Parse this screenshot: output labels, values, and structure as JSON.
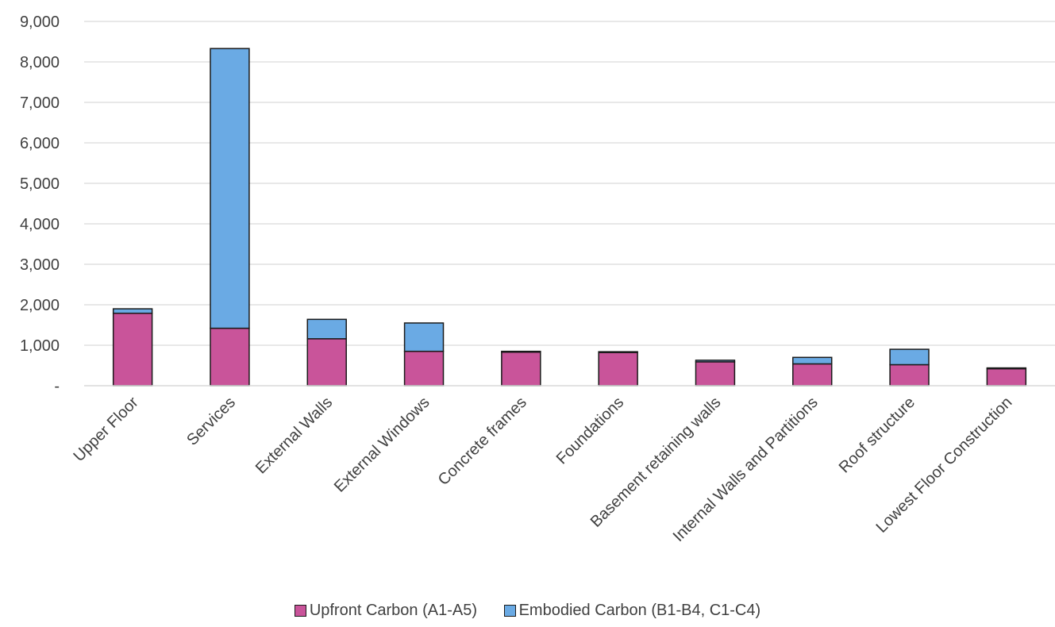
{
  "chart_data": {
    "type": "bar",
    "stacked": true,
    "categories": [
      "Upper Floor",
      "Services",
      "External Walls",
      "External Windows",
      "Concrete frames",
      "Foundations",
      "Basement retaining walls",
      "Internal Walls and Partitions",
      "Roof structure",
      "Lowest Floor Construction"
    ],
    "series": [
      {
        "name": "Upfront Carbon (A1-A5)",
        "color": "#c9549a",
        "values": [
          1790,
          1420,
          1160,
          850,
          830,
          820,
          590,
          540,
          520,
          420
        ]
      },
      {
        "name": "Embodied Carbon (B1-B4, C1-C4)",
        "color": "#6aaae4",
        "values": [
          110,
          6910,
          480,
          700,
          20,
          20,
          40,
          160,
          380,
          20
        ]
      }
    ],
    "ylim": [
      0,
      9000
    ],
    "yticks": [
      0,
      1000,
      2000,
      3000,
      4000,
      5000,
      6000,
      7000,
      8000,
      9000
    ],
    "ytick_labels": [
      "-",
      "1,000",
      "2,000",
      "3,000",
      "4,000",
      "5,000",
      "6,000",
      "7,000",
      "8,000",
      "9,000"
    ],
    "grid": true,
    "legend_position": "bottom"
  }
}
